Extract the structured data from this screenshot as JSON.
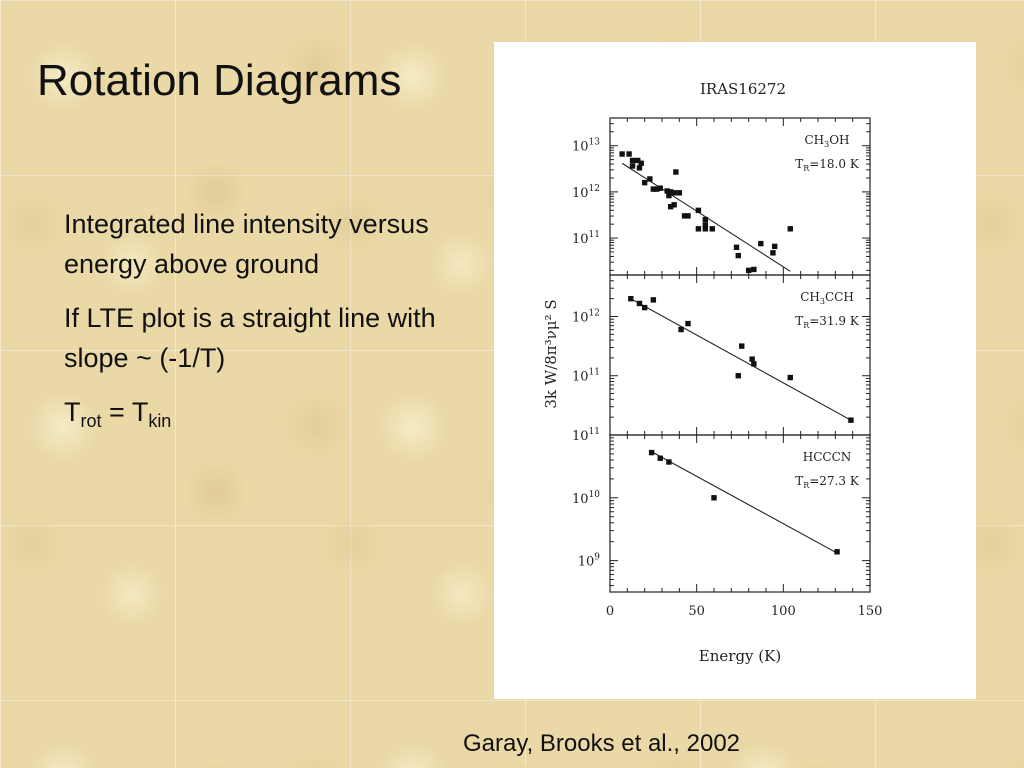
{
  "slide": {
    "title": "Rotation Diagrams",
    "bullets": [
      "Integrated line intensity versus energy above ground",
      "If LTE plot is a straight line with slope ~ (-1/T)"
    ],
    "equation": {
      "lhs": "T",
      "lhs_sub": "rot",
      "eq": " = ",
      "rhs": "T",
      "rhs_sub": "kin"
    },
    "citation": "Garay, Brooks et al., 2002"
  },
  "chart_data": [
    {
      "type": "scatter",
      "figure_title": "IRAS16272",
      "ylabel": "3k W/8π³νμ² S",
      "xlabel": "Energy (K)",
      "xlim": [
        0,
        150
      ],
      "xticks": [
        "0",
        "50",
        "100",
        "150"
      ],
      "yscale": "log",
      "ylim_log10": [
        10.2,
        13.6
      ],
      "ytick_exponents": [
        11,
        12,
        13
      ],
      "annotation_molecule": {
        "base": "CH",
        "sub": "3",
        "rest": "OH"
      },
      "annotation_temperature": "=18.0 K",
      "fit_log10": {
        "x1": 7,
        "y1": 12.62,
        "x2": 104,
        "y2": 10.28
      },
      "points": [
        [
          7,
          12.82
        ],
        [
          11,
          12.82
        ],
        [
          13,
          12.68
        ],
        [
          13,
          12.56
        ],
        [
          16,
          12.68
        ],
        [
          17,
          12.52
        ],
        [
          18,
          12.62
        ],
        [
          20,
          12.2
        ],
        [
          23,
          12.28
        ],
        [
          25,
          12.06
        ],
        [
          27,
          12.06
        ],
        [
          29,
          12.08
        ],
        [
          33,
          12.02
        ],
        [
          35,
          12.0
        ],
        [
          34,
          11.92
        ],
        [
          37,
          11.98
        ],
        [
          37,
          11.72
        ],
        [
          38,
          12.43
        ],
        [
          40,
          11.98
        ],
        [
          35,
          11.68
        ],
        [
          43,
          11.48
        ],
        [
          45,
          11.48
        ],
        [
          51,
          11.6
        ],
        [
          51,
          11.2
        ],
        [
          55,
          11.4
        ],
        [
          55,
          11.28
        ],
        [
          55,
          11.2
        ],
        [
          59,
          11.2
        ],
        [
          73,
          10.8
        ],
        [
          74,
          10.62
        ],
        [
          80,
          10.3
        ],
        [
          83,
          10.32
        ],
        [
          87,
          10.88
        ],
        [
          94,
          10.68
        ],
        [
          95,
          10.82
        ],
        [
          104,
          11.2
        ]
      ]
    },
    {
      "type": "scatter",
      "xlim": [
        0,
        150
      ],
      "yscale": "log",
      "ylim_log10": [
        10.0,
        12.7
      ],
      "ytick_exponents": [
        11,
        12
      ],
      "annotation_molecule": {
        "base": "CH",
        "sub": "3",
        "rest": "CCH"
      },
      "annotation_temperature": "=31.9 K",
      "fit_log10": {
        "x1": 12,
        "y1": 12.3,
        "x2": 139,
        "y2": 10.25
      },
      "points": [
        [
          12,
          12.3
        ],
        [
          17,
          12.22
        ],
        [
          20,
          12.15
        ],
        [
          25,
          12.28
        ],
        [
          41,
          11.78
        ],
        [
          45,
          11.88
        ],
        [
          74,
          11.0
        ],
        [
          76,
          11.5
        ],
        [
          82,
          11.28
        ],
        [
          83,
          11.2
        ],
        [
          104,
          10.97
        ],
        [
          139,
          10.25
        ]
      ]
    },
    {
      "type": "scatter",
      "xlim": [
        0,
        150
      ],
      "yscale": "log",
      "ylim_log10": [
        8.5,
        11.0
      ],
      "ytick_exponents": [
        9,
        10,
        11
      ],
      "annotation_molecule": {
        "base": "HCCCN",
        "sub": "",
        "rest": ""
      },
      "annotation_temperature": "=27.3 K",
      "fit_log10": {
        "x1": 25,
        "y1": 10.72,
        "x2": 131,
        "y2": 9.12
      },
      "points": [
        [
          24,
          10.72
        ],
        [
          29,
          10.63
        ],
        [
          34,
          10.57
        ],
        [
          60,
          10.0
        ],
        [
          131,
          9.14
        ]
      ]
    }
  ]
}
